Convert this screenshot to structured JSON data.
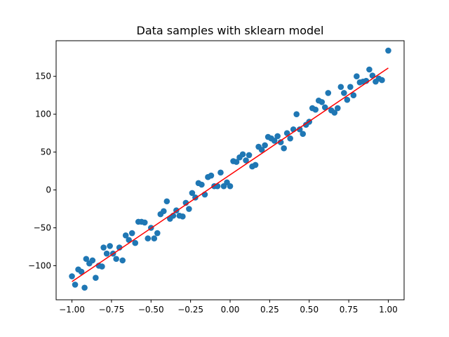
{
  "chart_data": {
    "type": "scatter",
    "title": "Data samples with sklearn model",
    "xlabel": "",
    "ylabel": "",
    "xlim": [
      -1.1,
      1.1
    ],
    "ylim": [
      -145,
      197
    ],
    "xticks": [
      -1.0,
      -0.75,
      -0.5,
      -0.25,
      0.0,
      0.25,
      0.5,
      0.75,
      1.0
    ],
    "xtick_labels": [
      "−1.00",
      "−0.75",
      "−0.50",
      "−0.25",
      "0.00",
      "0.25",
      "0.50",
      "0.75",
      "1.00"
    ],
    "yticks": [
      -100,
      -50,
      0,
      50,
      100,
      150
    ],
    "ytick_labels": [
      "−100",
      "−50",
      "0",
      "50",
      "100",
      "150"
    ],
    "grid": false,
    "legend": "none",
    "series": [
      {
        "type": "scatter",
        "color": "#1f77b4",
        "points": [
          [
            -1.0,
            -114
          ],
          [
            -0.98,
            -125
          ],
          [
            -0.96,
            -105
          ],
          [
            -0.94,
            -108
          ],
          [
            -0.92,
            -129
          ],
          [
            -0.91,
            -91
          ],
          [
            -0.89,
            -97
          ],
          [
            -0.87,
            -93
          ],
          [
            -0.85,
            -116
          ],
          [
            -0.83,
            -100
          ],
          [
            -0.81,
            -101
          ],
          [
            -0.8,
            -76
          ],
          [
            -0.78,
            -84
          ],
          [
            -0.76,
            -74
          ],
          [
            -0.74,
            -84
          ],
          [
            -0.72,
            -91
          ],
          [
            -0.7,
            -76
          ],
          [
            -0.68,
            -93
          ],
          [
            -0.66,
            -60
          ],
          [
            -0.64,
            -66
          ],
          [
            -0.62,
            -57
          ],
          [
            -0.6,
            -70
          ],
          [
            -0.58,
            -42
          ],
          [
            -0.56,
            -42
          ],
          [
            -0.54,
            -43
          ],
          [
            -0.52,
            -64
          ],
          [
            -0.5,
            -50
          ],
          [
            -0.48,
            -64
          ],
          [
            -0.46,
            -57
          ],
          [
            -0.44,
            -32
          ],
          [
            -0.42,
            -28
          ],
          [
            -0.4,
            -15
          ],
          [
            -0.38,
            -38
          ],
          [
            -0.36,
            -34
          ],
          [
            -0.34,
            -27
          ],
          [
            -0.32,
            -34
          ],
          [
            -0.3,
            -35
          ],
          [
            -0.28,
            -17
          ],
          [
            -0.26,
            -25
          ],
          [
            -0.24,
            -4
          ],
          [
            -0.22,
            -10
          ],
          [
            -0.2,
            9
          ],
          [
            -0.18,
            7
          ],
          [
            -0.16,
            -6
          ],
          [
            -0.14,
            17
          ],
          [
            -0.12,
            19
          ],
          [
            -0.1,
            5
          ],
          [
            -0.08,
            5
          ],
          [
            -0.06,
            23
          ],
          [
            -0.04,
            5
          ],
          [
            -0.02,
            10
          ],
          [
            0.0,
            5
          ],
          [
            0.02,
            38
          ],
          [
            0.04,
            37
          ],
          [
            0.06,
            43
          ],
          [
            0.08,
            47
          ],
          [
            0.1,
            39
          ],
          [
            0.12,
            46
          ],
          [
            0.14,
            31
          ],
          [
            0.16,
            33
          ],
          [
            0.18,
            57
          ],
          [
            0.2,
            53
          ],
          [
            0.22,
            59
          ],
          [
            0.24,
            70
          ],
          [
            0.26,
            68
          ],
          [
            0.28,
            65
          ],
          [
            0.3,
            71
          ],
          [
            0.32,
            63
          ],
          [
            0.34,
            55
          ],
          [
            0.36,
            75
          ],
          [
            0.38,
            68
          ],
          [
            0.4,
            80
          ],
          [
            0.42,
            100
          ],
          [
            0.44,
            80
          ],
          [
            0.46,
            74
          ],
          [
            0.48,
            86
          ],
          [
            0.5,
            90
          ],
          [
            0.52,
            108
          ],
          [
            0.54,
            106
          ],
          [
            0.56,
            118
          ],
          [
            0.58,
            116
          ],
          [
            0.6,
            109
          ],
          [
            0.62,
            128
          ],
          [
            0.64,
            105
          ],
          [
            0.66,
            102
          ],
          [
            0.68,
            108
          ],
          [
            0.7,
            136
          ],
          [
            0.72,
            128
          ],
          [
            0.74,
            119
          ],
          [
            0.76,
            136
          ],
          [
            0.78,
            125
          ],
          [
            0.8,
            150
          ],
          [
            0.82,
            142
          ],
          [
            0.84,
            143
          ],
          [
            0.86,
            144
          ],
          [
            0.88,
            159
          ],
          [
            0.9,
            151
          ],
          [
            0.92,
            143
          ],
          [
            0.94,
            147
          ],
          [
            0.96,
            145
          ],
          [
            1.0,
            184
          ]
        ]
      },
      {
        "type": "line",
        "color": "#ff0000",
        "points": [
          [
            -1.0,
            -121
          ],
          [
            1.0,
            161
          ]
        ]
      }
    ]
  }
}
